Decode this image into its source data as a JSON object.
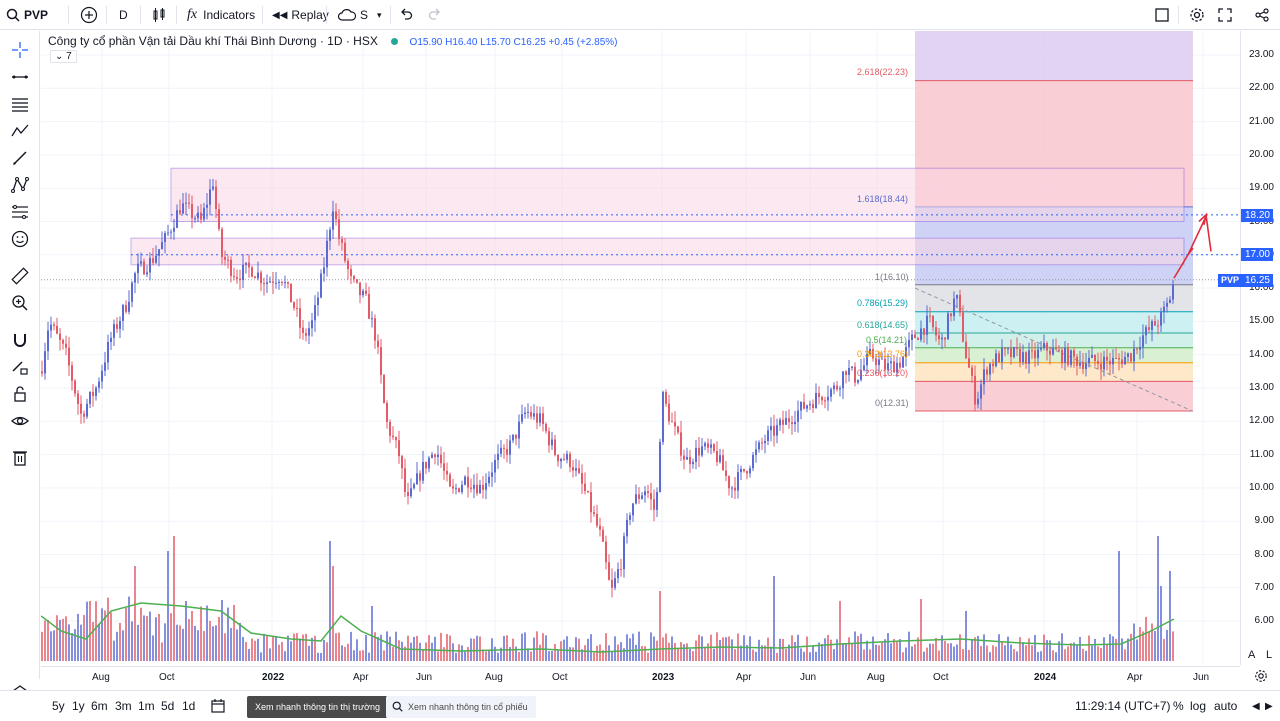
{
  "toolbar": {
    "symbol": "PVP",
    "interval": "D",
    "indicators_label": "Indicators",
    "replay_label": "Replay",
    "cloud_label": "S"
  },
  "legend": {
    "title": "Công ty cổ phần Vận tải Dầu khí Thái Bình Dương · 1D · HSX",
    "ohlc": "O15.90  H16.40  L15.70  C16.25  +0.45 (+2.85%)",
    "collapse_count": "7"
  },
  "price_axis": {
    "labels": [
      "23.00",
      "22.00",
      "21.00",
      "20.00",
      "19.00",
      "18.00",
      "17.00",
      "16.00",
      "15.00",
      "14.00",
      "13.00",
      "12.00",
      "11.00",
      "10.00",
      "9.00",
      "8.00",
      "7.00",
      "6.00"
    ],
    "tag_1820": "18.20",
    "tag_1700": "17.00",
    "tag_symbol": "PVP",
    "tag_price": "16.25",
    "scale_a": "A",
    "scale_l": "L"
  },
  "fib": {
    "l2618": "2.618(22.23)",
    "l1618": "1.618(18.44)",
    "l1": "1(16.10)",
    "l0786": "0.786(15.29)",
    "l0618": "0.618(14.65)",
    "l05": "0.5(14.21)",
    "l0382": "0.382(13.76)",
    "l0236": "0.236(13.20)",
    "l0": "0(12.31)"
  },
  "time_axis": {
    "labels": [
      "Aug",
      "Oct",
      "2022",
      "Apr",
      "Jun",
      "Aug",
      "Oct",
      "2023",
      "Apr",
      "Jun",
      "Aug",
      "Oct",
      "2024",
      "Apr",
      "Jun"
    ]
  },
  "bottombar": {
    "ranges": [
      "5y",
      "1y",
      "6m",
      "3m",
      "1m",
      "5d",
      "1d"
    ],
    "market_btn": "Xem nhanh thông tin thị trường",
    "stock_btn": "Xem nhanh thông tin cổ phiếu",
    "clock": "11:29:14 (UTC+7)",
    "percent": "%",
    "log": "log",
    "auto": "auto"
  },
  "colors": {
    "up": "#5b6bd1",
    "down": "#e35b67",
    "volume_ma": "#4caf50",
    "accent": "#2962ff"
  }
}
